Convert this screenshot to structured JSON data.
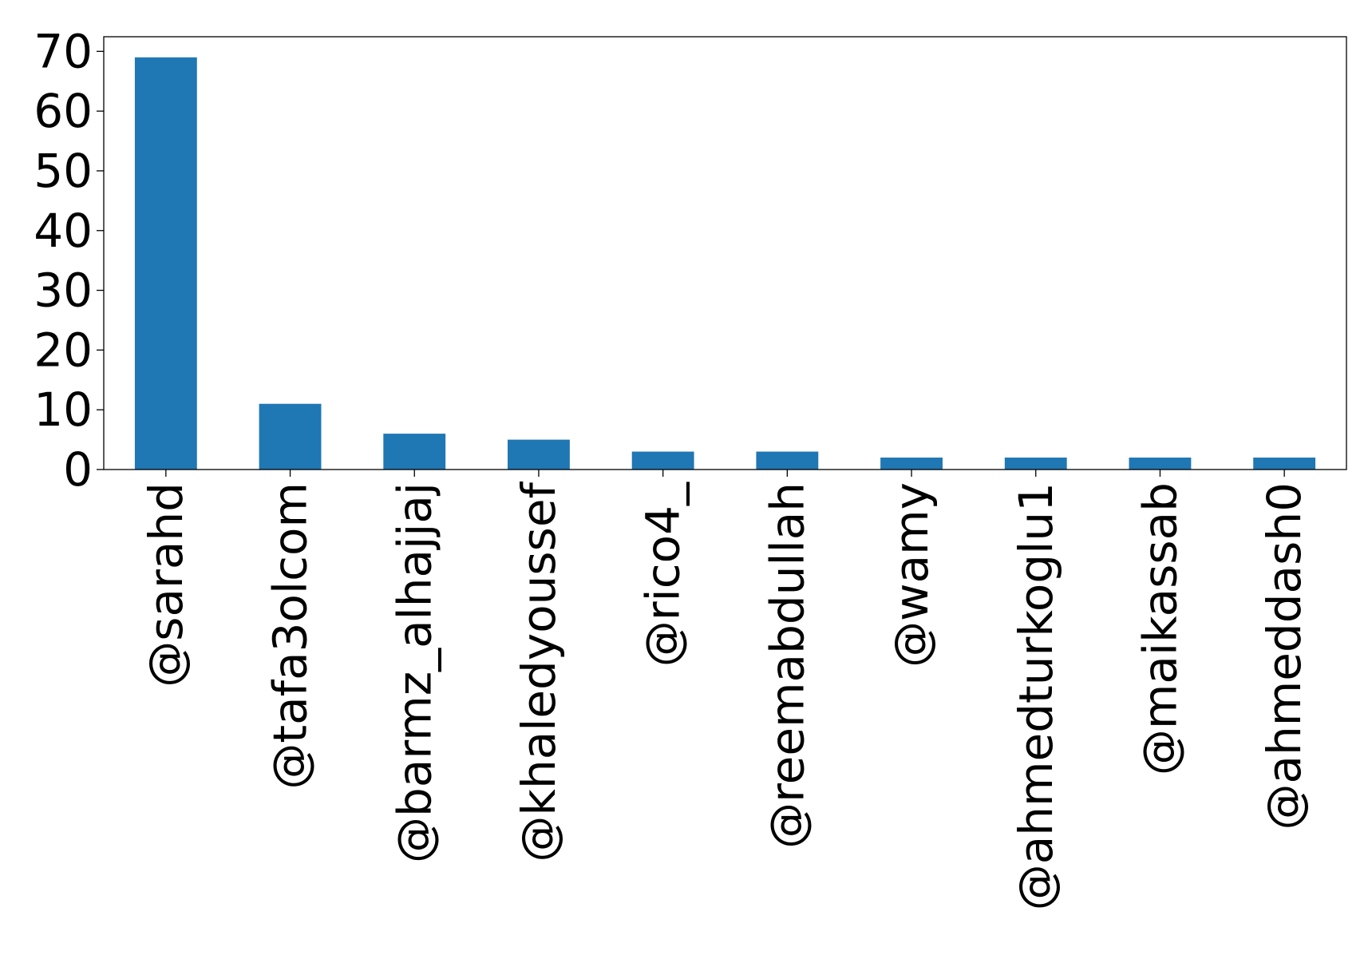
{
  "chart_data": {
    "type": "bar",
    "title": "",
    "xlabel": "",
    "ylabel": "",
    "categories": [
      "@sarahd",
      "@tafa3olcom",
      "@barmz_alhajjaj",
      "@khaledyoussef",
      "@rico4_",
      "@reemabdullah",
      "@wamy",
      "@ahmedturkoglu1",
      "@maikassab",
      "@ahmeddash0"
    ],
    "values": [
      69,
      11,
      6,
      5,
      3,
      3,
      2,
      2,
      2,
      2
    ],
    "ylim": [
      0,
      72.45
    ],
    "yticks": [
      0,
      10,
      20,
      30,
      40,
      50,
      60,
      70
    ],
    "grid": false,
    "legend": "none",
    "bar_color": "#1f77b4"
  }
}
